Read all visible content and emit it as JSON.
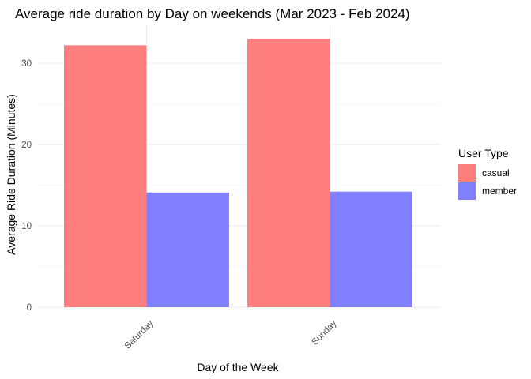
{
  "chart_data": {
    "type": "bar",
    "title": "Average ride duration by Day on weekends (Mar 2023 - Feb 2024)",
    "xlabel": "Day of the Week",
    "ylabel": "Average Ride Duration (Minutes)",
    "categories": [
      "Saturday",
      "Sunday"
    ],
    "series": [
      {
        "name": "casual",
        "values": [
          32.2,
          33.0
        ],
        "color": "#ff7f7f"
      },
      {
        "name": "member",
        "values": [
          14.1,
          14.2
        ],
        "color": "#7f7fff"
      }
    ],
    "ylim": [
      0,
      34
    ],
    "yticks": [
      0,
      10,
      20,
      30
    ],
    "ytick_labels": [
      "0",
      "10",
      "20",
      "30"
    ],
    "grid": true,
    "legend": {
      "title": "User Type",
      "position": "right"
    }
  }
}
